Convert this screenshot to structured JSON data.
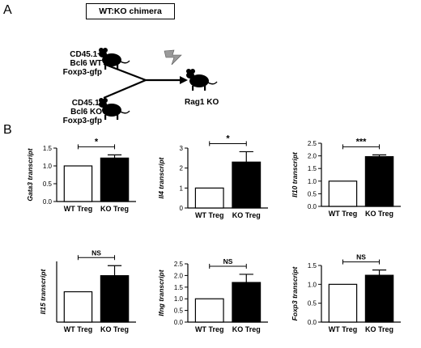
{
  "panel_a": {
    "letter": "A",
    "title": "WT:KO chimera",
    "donor_wt": [
      "CD45.1+",
      "Bcl6 WT",
      "Foxp3-gfp"
    ],
    "donor_ko": [
      "CD45.1-",
      "Bcl6 KO",
      "Foxp3-gfp"
    ],
    "recipient": "Rag1 KO"
  },
  "panel_b": {
    "letter": "B"
  },
  "chart_data": [
    {
      "type": "bar",
      "ylabel": "Gata3 transcript",
      "categories": [
        "WT Treg",
        "KO Treg"
      ],
      "values": [
        1.0,
        1.22
      ],
      "errors": [
        0,
        0.09
      ],
      "ylim": [
        0,
        1.5
      ],
      "yticks": [
        "0.0",
        "0.5",
        "1.0",
        "1.5"
      ],
      "significance": "*",
      "fills": [
        "#ffffff",
        "#000000"
      ]
    },
    {
      "type": "bar",
      "ylabel": "Il4 transcript",
      "categories": [
        "WT Treg",
        "KO Treg"
      ],
      "values": [
        1.0,
        2.3
      ],
      "errors": [
        0,
        0.52
      ],
      "ylim": [
        0,
        3
      ],
      "yticks": [
        "0",
        "1",
        "2",
        "3"
      ],
      "significance": "*",
      "fills": [
        "#ffffff",
        "#000000"
      ]
    },
    {
      "type": "bar",
      "ylabel": "Il10 transcript",
      "categories": [
        "WT Treg",
        "KO Treg"
      ],
      "values": [
        1.0,
        1.97
      ],
      "errors": [
        0,
        0.07
      ],
      "ylim": [
        0,
        2.5
      ],
      "yticks": [
        "0.0",
        "0.5",
        "1.0",
        "1.5",
        "2.0",
        "2.5"
      ],
      "significance": "***",
      "fills": [
        "#ffffff",
        "#000000"
      ]
    },
    {
      "type": "bar",
      "ylabel": "Il15 transcript",
      "categories": [
        "WT Treg",
        "KO Treg"
      ],
      "values": [
        1.0,
        1.53
      ],
      "errors": [
        0,
        0.33
      ],
      "ylim": [
        0,
        2.0
      ],
      "yticks": [],
      "significance": "NS",
      "fills": [
        "#ffffff",
        "#000000"
      ]
    },
    {
      "type": "bar",
      "ylabel": "Ifng transcript",
      "categories": [
        "WT Treg",
        "KO Treg"
      ],
      "values": [
        1.0,
        1.7
      ],
      "errors": [
        0,
        0.35
      ],
      "ylim": [
        0,
        2.5
      ],
      "yticks": [
        "0.0",
        "0.5",
        "1.0",
        "1.5",
        "2.0",
        "2.5"
      ],
      "significance": "NS",
      "fills": [
        "#ffffff",
        "#000000"
      ]
    },
    {
      "type": "bar",
      "ylabel": "Foxp3 transcript",
      "categories": [
        "WT Treg",
        "KO Treg"
      ],
      "values": [
        1.0,
        1.24
      ],
      "errors": [
        0,
        0.14
      ],
      "ylim": [
        0,
        1.5
      ],
      "yticks": [
        "0.0",
        "0.5",
        "1.0",
        "1.5"
      ],
      "significance": "NS",
      "fills": [
        "#ffffff",
        "#000000"
      ]
    }
  ]
}
